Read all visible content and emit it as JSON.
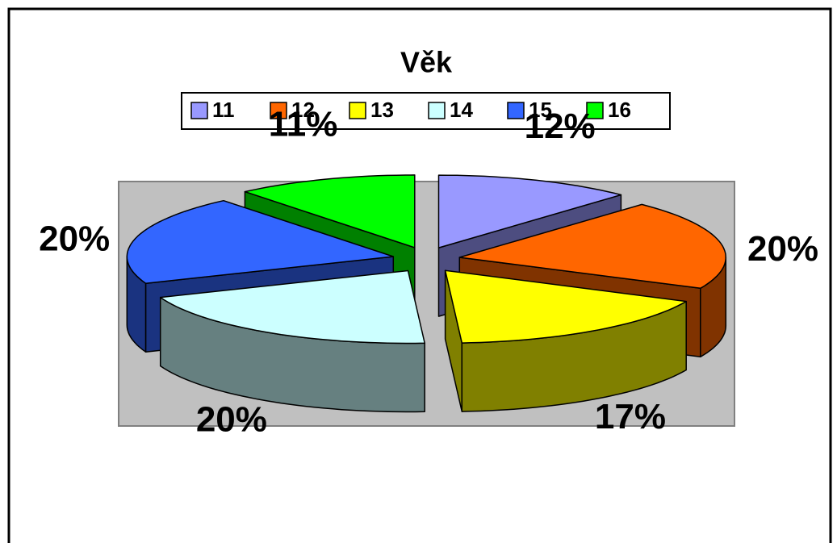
{
  "chart_data": {
    "type": "pie3d",
    "title": "Věk",
    "categories": [
      "11",
      "12",
      "13",
      "14",
      "15",
      "16"
    ],
    "values": [
      12,
      20,
      17,
      20,
      20,
      11
    ],
    "value_labels": [
      "12%",
      "20%",
      "17%",
      "20%",
      "20%",
      "11%"
    ],
    "colors": [
      "#9999ff",
      "#ff6600",
      "#ffff00",
      "#ccffff",
      "#3366ff",
      "#00ff00"
    ],
    "legend": "top"
  }
}
